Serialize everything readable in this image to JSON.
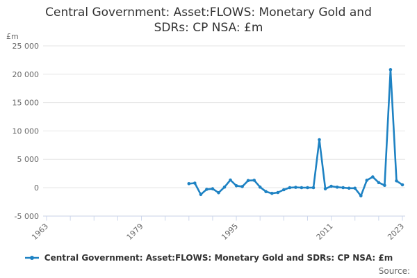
{
  "title_lines": [
    "Central Government: Asset:FLOWS: Monetary Gold and",
    "SDRs: CP NSA: £m"
  ],
  "unit_label": "£m",
  "source_label": "Source:",
  "legend": {
    "series_label": "Central Government: Asset:FLOWS: Monetary Gold and SDRs: CP NSA: £m"
  },
  "colors": {
    "series": "#1e82c3",
    "grid": "#e6e6e6",
    "axis": "#ccd6eb",
    "text_muted": "#666666",
    "text_dark": "#333333"
  },
  "chart_data": {
    "type": "line",
    "title": "Central Government: Asset:FLOWS: Monetary Gold and SDRs: CP NSA: £m",
    "xlabel": "",
    "ylabel": "£m",
    "grid": true,
    "legend_position": "bottom",
    "series_name": "Central Government: Asset:FLOWS: Monetary Gold and SDRs: CP NSA: £m",
    "x": [
      1987,
      1988,
      1989,
      1990,
      1991,
      1992,
      1993,
      1994,
      1995,
      1996,
      1997,
      1998,
      1999,
      2000,
      2001,
      2002,
      2003,
      2004,
      2005,
      2006,
      2007,
      2008,
      2009,
      2010,
      2011,
      2012,
      2013,
      2014,
      2015,
      2016,
      2017,
      2018,
      2019,
      2020,
      2021,
      2022,
      2023
    ],
    "values": [
      700,
      800,
      -1200,
      -300,
      -200,
      -900,
      100,
      1350,
      330,
      200,
      1250,
      1300,
      100,
      -700,
      -1000,
      -860,
      -370,
      0,
      50,
      0,
      0,
      0,
      8450,
      -200,
      250,
      80,
      0,
      -100,
      -100,
      -1450,
      1300,
      1900,
      900,
      400,
      20800,
      1200,
      500
    ],
    "xAxis": {
      "tick_start": 1963,
      "tick_end": 2023,
      "tick_step": 4,
      "labeled_ticks": [
        1963,
        1979,
        1995,
        2011,
        2023
      ]
    },
    "yAxis": {
      "min": -5000,
      "max": 25000,
      "tick_step": 5000,
      "tick_labels": [
        "-5 000",
        "0",
        "5 000",
        "10 000",
        "15 000",
        "20 000",
        "25 000"
      ]
    }
  }
}
